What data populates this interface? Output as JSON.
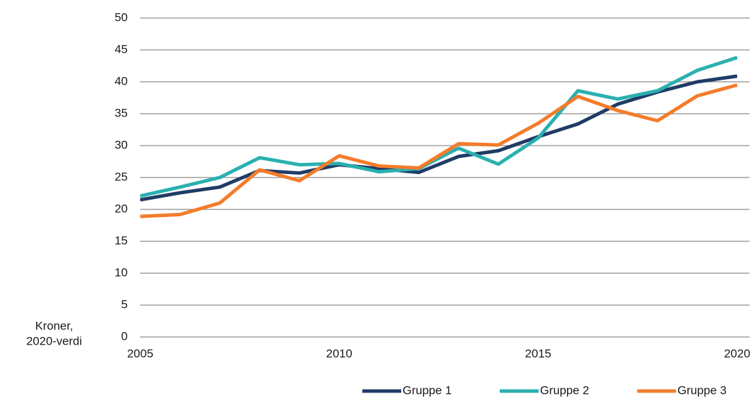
{
  "chart_data": {
    "type": "line",
    "ylabel": [
      "Kroner,",
      "2020-verdi"
    ],
    "x": [
      2005,
      2006,
      2007,
      2008,
      2009,
      2010,
      2011,
      2012,
      2013,
      2014,
      2015,
      2016,
      2017,
      2018,
      2019,
      2020
    ],
    "series": [
      {
        "name": "Gruppe 1",
        "color": "#1f3c66",
        "values": [
          21.5,
          22.6,
          23.5,
          26.1,
          25.7,
          27.0,
          26.4,
          25.8,
          28.3,
          29.2,
          31.4,
          33.4,
          36.5,
          38.4,
          40.0,
          40.9
        ]
      },
      {
        "name": "Gruppe 2",
        "color": "#2ab0b0",
        "values": [
          22.1,
          23.5,
          25.0,
          28.1,
          27.0,
          27.2,
          25.9,
          26.4,
          29.6,
          27.1,
          31.2,
          38.6,
          37.3,
          38.6,
          41.8,
          43.8
        ]
      },
      {
        "name": "Gruppe 3",
        "color": "#f47c2a",
        "values": [
          18.9,
          19.2,
          21.0,
          26.2,
          24.5,
          28.4,
          26.8,
          26.5,
          30.3,
          30.1,
          33.5,
          37.7,
          35.5,
          33.9,
          37.8,
          39.5
        ]
      }
    ],
    "xlim": [
      2005,
      2020
    ],
    "xticks": [
      2005,
      2010,
      2015,
      2020
    ],
    "ylim": [
      0,
      50
    ],
    "yticks": [
      0,
      5,
      10,
      15,
      20,
      25,
      30,
      35,
      40,
      45,
      50
    ],
    "grid": true,
    "legend": "bottom"
  }
}
